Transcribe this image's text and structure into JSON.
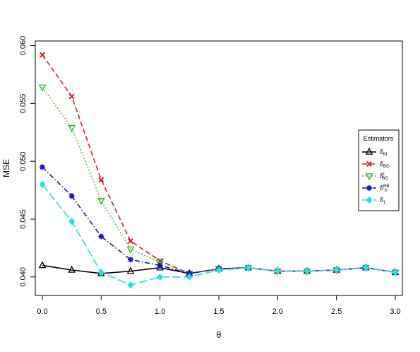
{
  "chart_data": {
    "type": "line",
    "title": "",
    "xlabel": "θ",
    "ylabel": "MSE",
    "xlim": [
      -0.06,
      3.06
    ],
    "ylim": [
      0.0384,
      0.0604
    ],
    "x_ticks": [
      0.0,
      0.5,
      1.0,
      1.5,
      2.0,
      2.5,
      3.0
    ],
    "x_tick_labels": [
      "0.0",
      "0.5",
      "1.0",
      "1.5",
      "2.0",
      "2.5",
      "3.0"
    ],
    "y_ticks": [
      0.04,
      0.045,
      0.05,
      0.055,
      0.06
    ],
    "y_tick_labels": [
      "0.040",
      "0.045",
      "0.050",
      "0.055",
      "0.060"
    ],
    "grid": false,
    "legend": {
      "title": "Estimators",
      "placement": "right"
    },
    "x": [
      0,
      0.25,
      0.5,
      0.75,
      1.0,
      1.25,
      1.5,
      1.75,
      2.0,
      2.25,
      2.5,
      2.75,
      3.0
    ],
    "series": [
      {
        "name": "δ_M",
        "label_main": "δ",
        "label_sub": "M",
        "label_sup": "",
        "color": "#000000",
        "dash": "",
        "marker": "triangle",
        "values": [
          0.041,
          0.0406,
          0.0403,
          0.0405,
          0.0408,
          0.0403,
          0.0407,
          0.0408,
          0.0405,
          0.0405,
          0.0406,
          0.0408,
          0.0404
        ]
      },
      {
        "name": "δ_BG",
        "label_main": "δ",
        "label_sub": "BG",
        "label_sup": "",
        "color": "#e41a1c",
        "dash": "7,4",
        "marker": "x",
        "values": [
          0.0592,
          0.0556,
          0.0484,
          0.0431,
          0.0414,
          0.0403,
          0.0407,
          0.0408,
          0.0405,
          0.0405,
          0.0406,
          0.0408,
          0.0404
        ]
      },
      {
        "name": "δ_BG^I",
        "label_main": "δ",
        "label_sub": "BG",
        "label_sup": "I",
        "color": "#22b822",
        "dash": "1.5,3",
        "marker": "triangle-down",
        "values": [
          0.0564,
          0.0529,
          0.0466,
          0.0424,
          0.0413,
          0.0403,
          0.0407,
          0.0408,
          0.0405,
          0.0405,
          0.0406,
          0.0408,
          0.0404
        ]
      },
      {
        "name": "δ_0^RB",
        "label_main": "δ",
        "label_sub": "0",
        "label_sup": "RB",
        "color": "#1010d0",
        "dash": "7,3,1.5,3",
        "marker": "asterisk",
        "values": [
          0.0495,
          0.047,
          0.0435,
          0.0415,
          0.041,
          0.0403,
          0.0407,
          0.0408,
          0.0405,
          0.0405,
          0.0406,
          0.0408,
          0.0404
        ]
      },
      {
        "name": "δ_1",
        "label_main": "δ",
        "label_sub": "1",
        "label_sup": "",
        "color": "#22e0e6",
        "dash": "12,4",
        "marker": "diamond",
        "values": [
          0.048,
          0.0448,
          0.0404,
          0.0393,
          0.04,
          0.04,
          0.0406,
          0.0408,
          0.0405,
          0.0405,
          0.0406,
          0.0408,
          0.0404
        ]
      }
    ]
  }
}
